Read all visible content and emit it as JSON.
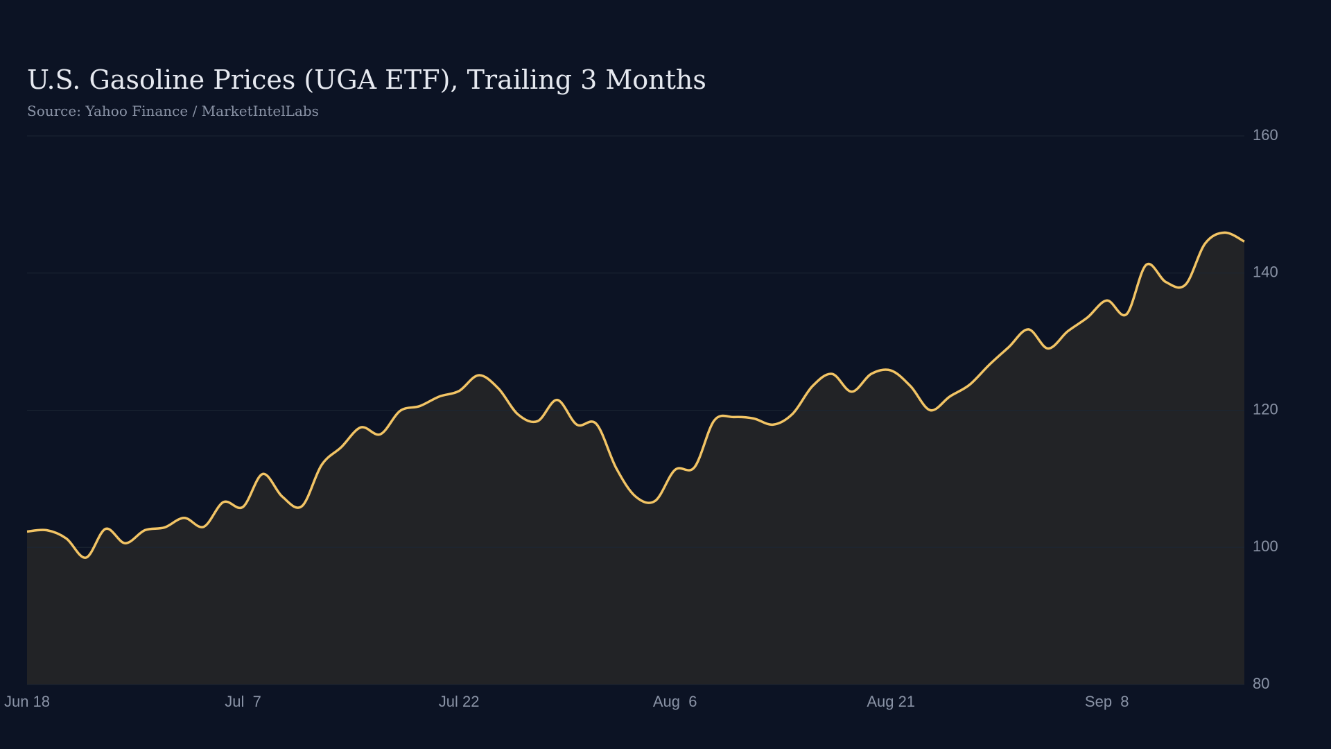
{
  "chart_data": {
    "type": "area",
    "title": "U.S. Gasoline Prices (UGA ETF), Trailing 3 Months",
    "subtitle": "Source: Yahoo Finance / MarketIntelLabs",
    "categories": [
      "Jun 18",
      null,
      null,
      null,
      null,
      null,
      null,
      null,
      null,
      null,
      null,
      "Jul  7",
      null,
      null,
      null,
      null,
      null,
      null,
      null,
      null,
      null,
      null,
      "Jul 22",
      null,
      null,
      null,
      null,
      null,
      null,
      null,
      null,
      null,
      null,
      "Aug  6",
      null,
      null,
      null,
      null,
      null,
      null,
      null,
      null,
      null,
      null,
      "Aug 21",
      null,
      null,
      null,
      null,
      null,
      null,
      null,
      null,
      null,
      null,
      "Sep  8",
      null,
      null,
      null,
      null,
      null,
      null,
      null
    ],
    "values": [
      102.3,
      102.5,
      101.3,
      98.5,
      102.7,
      100.6,
      102.5,
      102.9,
      104.3,
      103.0,
      106.6,
      105.9,
      110.7,
      107.4,
      106.0,
      112.0,
      114.6,
      117.5,
      116.5,
      119.9,
      120.6,
      122.0,
      122.8,
      125.1,
      123.2,
      119.4,
      118.4,
      121.5,
      117.9,
      118.0,
      111.6,
      107.4,
      106.8,
      111.3,
      111.7,
      118.5,
      119.0,
      118.8,
      117.9,
      119.5,
      123.5,
      125.3,
      122.7,
      125.3,
      125.8,
      123.5,
      120.0,
      122.0,
      123.7,
      126.6,
      129.2,
      131.8,
      129.0,
      131.5,
      133.5,
      136.0,
      134.0,
      141.2,
      138.7,
      138.3,
      144.3,
      145.9,
      144.6
    ],
    "color": "#f2c465",
    "fill_color": "#222326",
    "ylim": [
      80,
      160
    ],
    "yticks": [
      80,
      100,
      120,
      140,
      160
    ],
    "grid": true
  }
}
